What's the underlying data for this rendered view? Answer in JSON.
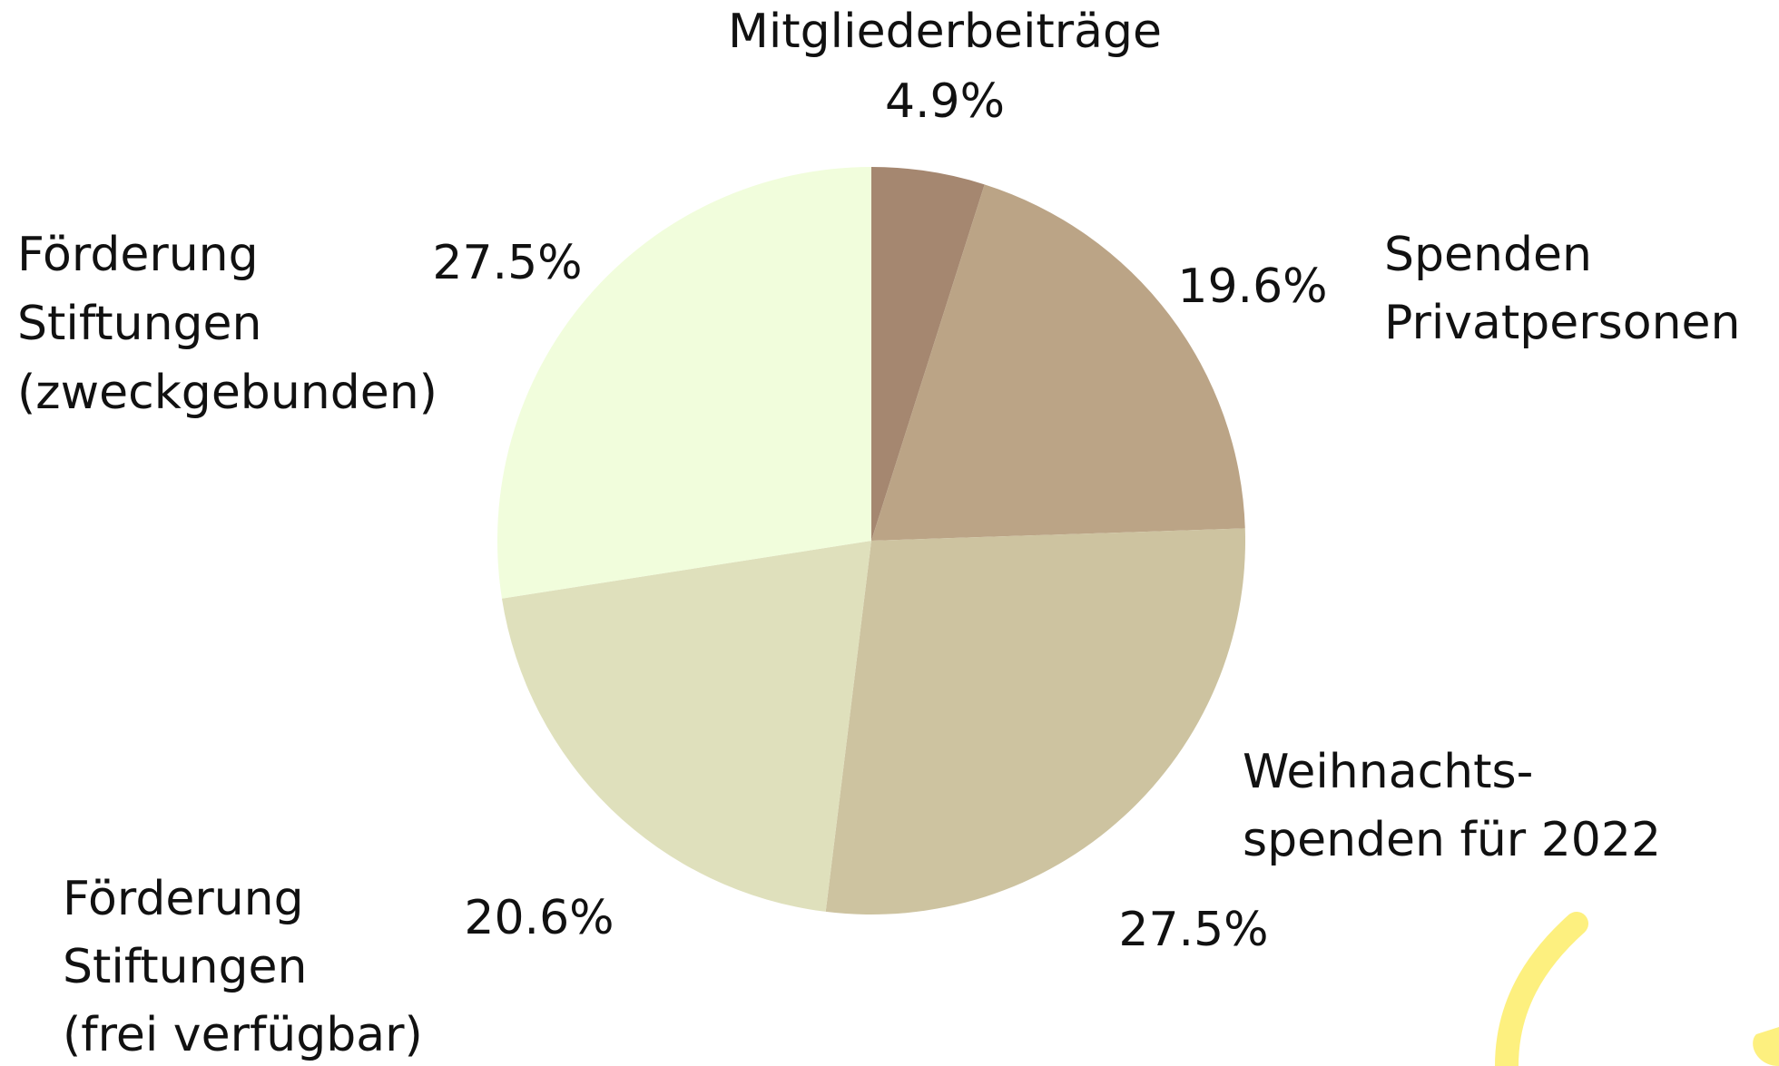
{
  "chart_data": {
    "type": "pie",
    "categories": [
      [
        "Mitgliederbeiträge"
      ],
      [
        "Spenden",
        "Privatpersonen"
      ],
      [
        "Weihnachts-",
        "spenden für 2022"
      ],
      [
        "Förderung",
        "Stiftungen",
        "(frei verfügbar)"
      ],
      [
        "Förderung",
        "Stiftungen",
        "(zweckgebunden)"
      ]
    ],
    "values": [
      4.9,
      19.6,
      27.5,
      20.6,
      27.5
    ],
    "value_labels": [
      "4.9%",
      "19.6%",
      "27.5%",
      "20.6%",
      "27.5%"
    ],
    "colors": [
      "#a58770",
      "#bba486",
      "#cdc3a0",
      "#dfe0bc",
      "#f1fddc"
    ]
  }
}
